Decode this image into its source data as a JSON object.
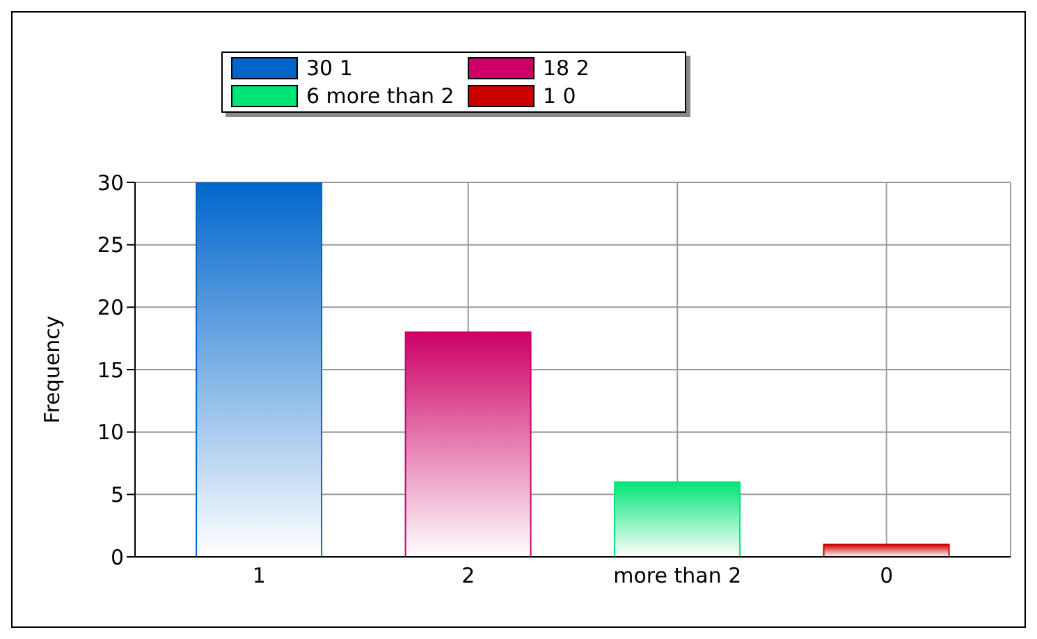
{
  "chart_data": {
    "type": "bar",
    "ylabel": "Frequency",
    "categories": [
      "1",
      "2",
      "more than 2",
      "0"
    ],
    "stacked": true,
    "series": [
      {
        "name": "30 1",
        "color": "#0066cc",
        "values": [
          30,
          null,
          null,
          null
        ]
      },
      {
        "name": "18 2",
        "color": "#cc0066",
        "values": [
          null,
          18,
          null,
          null
        ]
      },
      {
        "name": "6 more than 2",
        "color": "#00e676",
        "values": [
          null,
          null,
          6,
          null
        ]
      },
      {
        "name": "1 0",
        "color": "#cc0000",
        "values": [
          null,
          null,
          null,
          1
        ]
      }
    ],
    "ylim": [
      0,
      30
    ],
    "yticks": [
      0,
      5,
      10,
      15,
      20,
      25,
      30
    ],
    "grid": true,
    "legend": "top"
  }
}
